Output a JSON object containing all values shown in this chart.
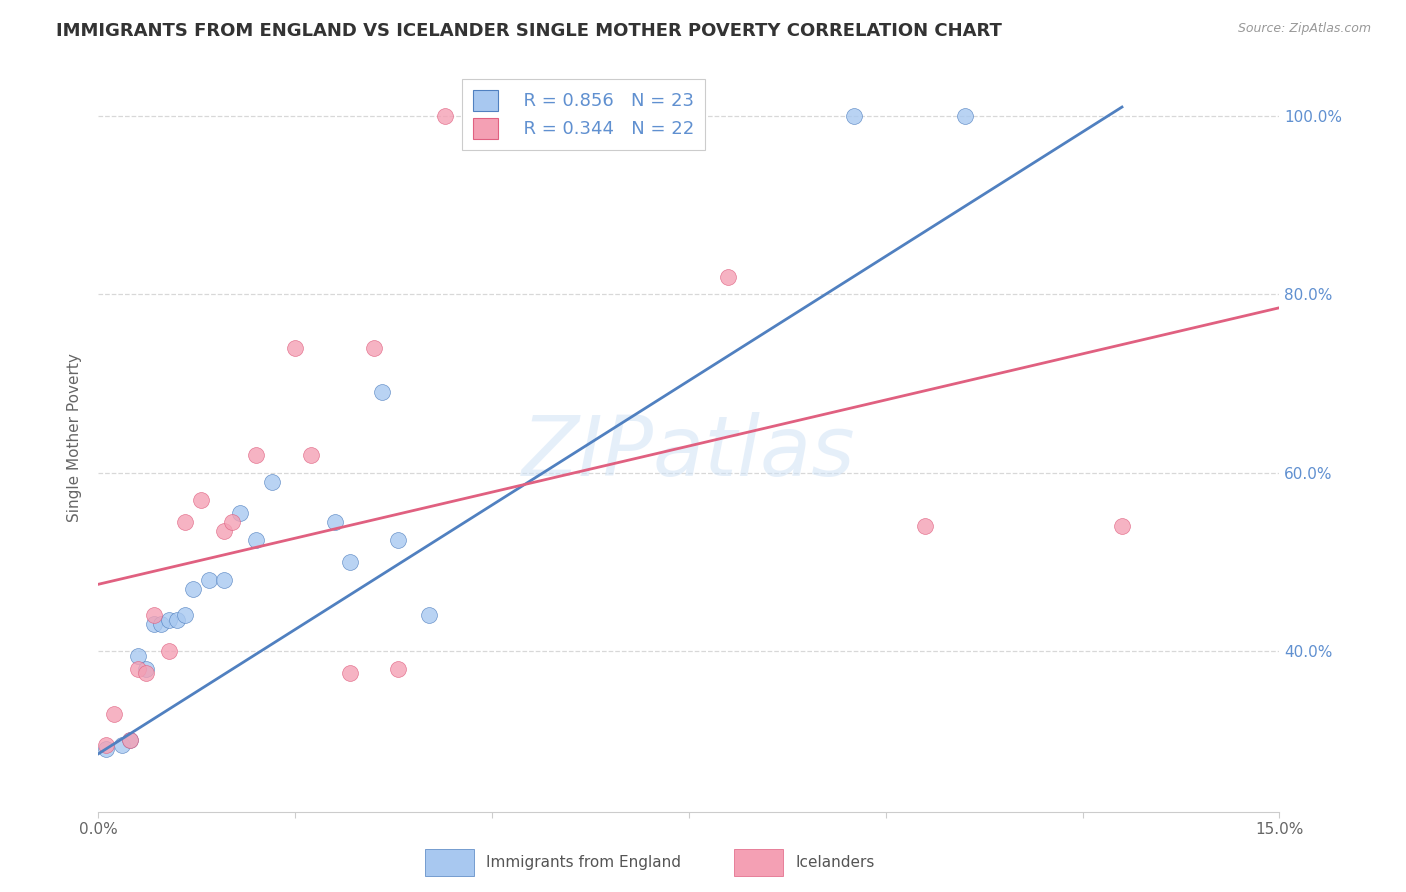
{
  "title": "IMMIGRANTS FROM ENGLAND VS ICELANDER SINGLE MOTHER POVERTY CORRELATION CHART",
  "source": "Source: ZipAtlas.com",
  "ylabel": "Single Mother Poverty",
  "ytick_labels": [
    "100.0%",
    "80.0%",
    "60.0%",
    "40.0%"
  ],
  "ytick_values": [
    1.0,
    0.8,
    0.6,
    0.4
  ],
  "xlim": [
    0.0,
    0.15
  ],
  "ylim": [
    0.22,
    1.06
  ],
  "legend_blue_r": "R = 0.856",
  "legend_blue_n": "N = 23",
  "legend_pink_r": "R = 0.344",
  "legend_pink_n": "N = 22",
  "legend_label_blue": "Immigrants from England",
  "legend_label_pink": "Icelanders",
  "blue_color": "#A8C8F0",
  "pink_color": "#F4A0B4",
  "line_blue_color": "#5080C0",
  "line_pink_color": "#E06080",
  "watermark": "ZIPatlas",
  "blue_scatter_x": [
    0.001,
    0.003,
    0.004,
    0.005,
    0.006,
    0.007,
    0.008,
    0.009,
    0.01,
    0.011,
    0.012,
    0.014,
    0.016,
    0.018,
    0.02,
    0.022,
    0.03,
    0.032,
    0.036,
    0.038,
    0.042,
    0.096,
    0.11
  ],
  "blue_scatter_y": [
    0.29,
    0.295,
    0.3,
    0.395,
    0.38,
    0.43,
    0.43,
    0.435,
    0.435,
    0.44,
    0.47,
    0.48,
    0.48,
    0.555,
    0.525,
    0.59,
    0.545,
    0.5,
    0.69,
    0.525,
    0.44,
    1.0,
    1.0
  ],
  "pink_scatter_x": [
    0.001,
    0.002,
    0.004,
    0.005,
    0.006,
    0.007,
    0.009,
    0.011,
    0.013,
    0.016,
    0.017,
    0.02,
    0.025,
    0.027,
    0.032,
    0.035,
    0.038,
    0.044,
    0.063,
    0.08,
    0.105,
    0.13
  ],
  "pink_scatter_y": [
    0.295,
    0.33,
    0.3,
    0.38,
    0.375,
    0.44,
    0.4,
    0.545,
    0.57,
    0.535,
    0.545,
    0.62,
    0.74,
    0.62,
    0.375,
    0.74,
    0.38,
    1.0,
    1.0,
    0.82,
    0.54,
    0.54
  ],
  "blue_line_x": [
    0.0,
    0.13
  ],
  "blue_line_y": [
    0.285,
    1.01
  ],
  "pink_line_x": [
    0.0,
    0.15
  ],
  "pink_line_y": [
    0.475,
    0.785
  ],
  "marker_size": 130,
  "title_fontsize": 13,
  "axis_label_fontsize": 11,
  "tick_fontsize": 11,
  "right_tick_color": "#6090D0",
  "title_color": "#333333",
  "source_color": "#999999",
  "grid_color": "#d8d8d8",
  "spine_color": "#cccccc",
  "tick_label_color": "#666666"
}
